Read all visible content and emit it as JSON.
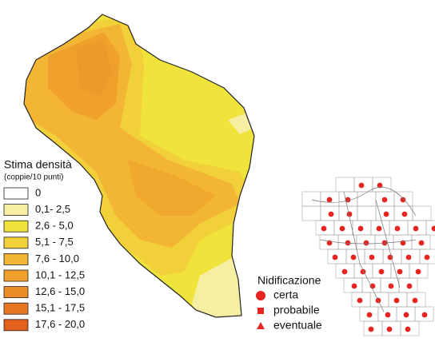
{
  "legend": {
    "title": "Stima densità",
    "subtitle": "(coppie/10 punti)",
    "items": [
      {
        "label": "0",
        "color": "#ffffff"
      },
      {
        "label": "0,1- 2,5",
        "color": "#f6efa2"
      },
      {
        "label": "2,6 - 5,0",
        "color": "#efe33c"
      },
      {
        "label": "5,1 - 7,5",
        "color": "#f2d03a"
      },
      {
        "label": "7,6 - 10,0",
        "color": "#f2b634"
      },
      {
        "label": "10,1 - 12,5",
        "color": "#f0a12c"
      },
      {
        "label": "12,6 - 15,0",
        "color": "#ec8c27"
      },
      {
        "label": "15,1 - 17,5",
        "color": "#e87722"
      },
      {
        "label": "17,6 - 20,0",
        "color": "#e3601b"
      }
    ]
  },
  "nesting_legend": {
    "title": "Nidificazione",
    "items": [
      {
        "label": "certa",
        "symbol": "circle"
      },
      {
        "label": "probabile",
        "symbol": "square"
      },
      {
        "label": "eventuale",
        "symbol": "triangle"
      }
    ]
  }
}
